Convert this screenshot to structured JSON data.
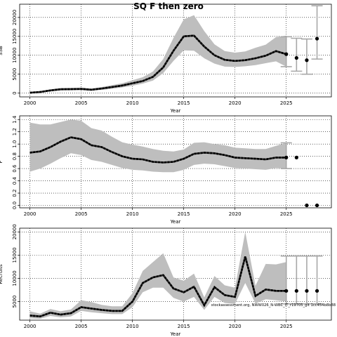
{
  "title": "SQ F then zero",
  "footnote": "stockassessment.org, NWW026_N-WBC_IT_r19705_git 1cc454b8b88",
  "colors": {
    "band": "#bebebe",
    "projection_bar": "#a8a8a8",
    "line": "#000000",
    "grid": "#000000"
  },
  "chart_data": [
    {
      "type": "line",
      "xlabel": "Year",
      "ylabel": "SSB",
      "xlim": [
        1999,
        2029.4
      ],
      "ylim": [
        -1000,
        23500
      ],
      "x_ticks": [
        2000,
        2005,
        2010,
        2015,
        2020,
        2025
      ],
      "y_ticks": [
        0,
        5000,
        10000,
        15000,
        20000
      ],
      "grid": true,
      "estimate": {
        "x": [
          2000,
          2001,
          2002,
          2003,
          2004,
          2005,
          2006,
          2007,
          2008,
          2009,
          2010,
          2011,
          2012,
          2013,
          2014,
          2015,
          2016,
          2017,
          2018,
          2019,
          2020,
          2021,
          2022,
          2023,
          2024,
          2025
        ],
        "y": [
          100,
          300,
          700,
          1000,
          1050,
          1100,
          900,
          1200,
          1600,
          2000,
          2600,
          3200,
          4300,
          6800,
          11200,
          15000,
          15200,
          12300,
          10000,
          8800,
          8500,
          8700,
          9200,
          9900,
          11100,
          10300
        ],
        "lower": [
          60,
          200,
          450,
          700,
          750,
          780,
          650,
          850,
          1150,
          1500,
          1950,
          2500,
          3300,
          5300,
          8500,
          11300,
          11200,
          9200,
          7800,
          7000,
          6900,
          7100,
          7400,
          7900,
          8400,
          7000
        ],
        "upper": [
          150,
          450,
          1000,
          1350,
          1400,
          1450,
          1200,
          1600,
          2100,
          2600,
          3400,
          4200,
          5700,
          9000,
          14600,
          19500,
          20600,
          16400,
          12900,
          11100,
          10700,
          11000,
          12000,
          12800,
          14800,
          15200
        ]
      },
      "projection": {
        "x": [
          2025,
          2026,
          2027,
          2028
        ],
        "median": [
          10300,
          9300,
          8700,
          14400
        ],
        "low": [
          7000,
          5800,
          5000,
          9000
        ],
        "high": [
          14900,
          14500,
          14300,
          23100
        ]
      }
    },
    {
      "type": "line",
      "xlabel": "Year",
      "ylabel": "F",
      "xlim": [
        1999,
        2029.4
      ],
      "ylim": [
        -0.04,
        1.46
      ],
      "x_ticks": [
        2000,
        2005,
        2010,
        2015,
        2020,
        2025
      ],
      "y_ticks": [
        0.0,
        0.2,
        0.4,
        0.6,
        0.8,
        1.0,
        1.2,
        1.4
      ],
      "grid": true,
      "estimate": {
        "x": [
          2000,
          2001,
          2002,
          2003,
          2004,
          2005,
          2006,
          2007,
          2008,
          2009,
          2010,
          2011,
          2012,
          2013,
          2014,
          2015,
          2016,
          2017,
          2018,
          2019,
          2020,
          2021,
          2022,
          2023,
          2024,
          2025
        ],
        "y": [
          0.86,
          0.88,
          0.95,
          1.04,
          1.11,
          1.08,
          0.98,
          0.95,
          0.87,
          0.8,
          0.76,
          0.75,
          0.71,
          0.7,
          0.71,
          0.76,
          0.84,
          0.86,
          0.85,
          0.82,
          0.78,
          0.77,
          0.76,
          0.75,
          0.78,
          0.78
        ],
        "lower": [
          0.55,
          0.6,
          0.68,
          0.77,
          0.85,
          0.82,
          0.74,
          0.71,
          0.66,
          0.61,
          0.58,
          0.57,
          0.55,
          0.54,
          0.54,
          0.58,
          0.66,
          0.68,
          0.67,
          0.64,
          0.61,
          0.6,
          0.59,
          0.58,
          0.61,
          0.6
        ],
        "upper": [
          1.35,
          1.32,
          1.32,
          1.36,
          1.4,
          1.38,
          1.26,
          1.22,
          1.12,
          1.03,
          0.99,
          0.96,
          0.92,
          0.89,
          0.88,
          0.91,
          1.02,
          1.03,
          1.0,
          0.98,
          0.94,
          0.93,
          0.92,
          0.92,
          0.97,
          1.02
        ]
      },
      "projection": {
        "x": [
          2025,
          2026,
          2027,
          2028
        ],
        "median": [
          0.78,
          0.78,
          0.0,
          0.0
        ],
        "low": [
          0.6,
          null,
          null,
          null
        ],
        "high": [
          1.02,
          null,
          null,
          null
        ]
      }
    },
    {
      "type": "line",
      "xlabel": "Year",
      "ylabel": "Recruits",
      "xlim": [
        1999,
        2029.4
      ],
      "ylim": [
        1000,
        20800
      ],
      "x_ticks": [
        2000,
        2005,
        2010,
        2015,
        2020,
        2025
      ],
      "y_ticks": [
        5000,
        10000,
        15000,
        20000
      ],
      "grid": true,
      "estimate": {
        "x": [
          2000,
          2001,
          2002,
          2003,
          2004,
          2005,
          2006,
          2007,
          2008,
          2009,
          2010,
          2011,
          2012,
          2013,
          2014,
          2015,
          2016,
          2017,
          2018,
          2019,
          2020,
          2021,
          2022,
          2023,
          2024,
          2025
        ],
        "y": [
          2000,
          1800,
          2600,
          2200,
          2500,
          3800,
          3500,
          3200,
          3000,
          3000,
          5000,
          9000,
          10200,
          10700,
          7800,
          7000,
          8200,
          4200,
          8100,
          6400,
          6000,
          14700,
          6200,
          7600,
          7300,
          7300
        ],
        "lower": [
          1400,
          1300,
          1900,
          1600,
          1800,
          3000,
          2700,
          2500,
          2300,
          2300,
          3800,
          7000,
          8000,
          8000,
          5800,
          5000,
          6000,
          3200,
          6000,
          4700,
          4500,
          9000,
          4600,
          5500,
          5300,
          5000
        ],
        "upper": [
          2900,
          2400,
          3400,
          2900,
          3300,
          5300,
          4900,
          4300,
          4000,
          4000,
          6800,
          11600,
          13500,
          15400,
          10200,
          9500,
          11000,
          5900,
          10500,
          8500,
          8000,
          20000,
          8400,
          13100,
          13000,
          13500
        ]
      },
      "projection": {
        "x": [
          2025,
          2026,
          2027,
          2028
        ],
        "median": [
          7300,
          7300,
          7300,
          7300
        ],
        "low": [
          4500,
          4500,
          4500,
          4500
        ],
        "high": [
          14800,
          14800,
          14800,
          14800
        ]
      }
    }
  ]
}
